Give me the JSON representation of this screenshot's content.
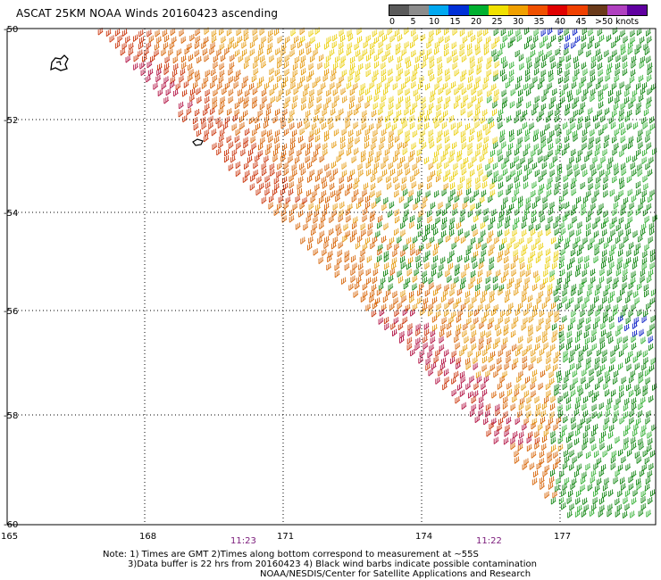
{
  "title": "ASCAT 25KM NOAA Winds 20160423 ascending",
  "legend": {
    "labels": [
      "0",
      "5",
      "10",
      "15",
      "20",
      "25",
      "30",
      "35",
      "40",
      "45",
      ">50 knots"
    ],
    "colors": [
      "#5a5a5a",
      "#8c8c8c",
      "#00a8f0",
      "#0030d8",
      "#00b030",
      "#f0e000",
      "#f0a000",
      "#f05000",
      "#e00000",
      "#f04000",
      "#6a3a1a",
      "#b040c0",
      "#6000a0"
    ]
  },
  "latitudes": [
    "-50",
    "-52",
    "-54",
    "-56",
    "-58",
    "-60"
  ],
  "longitudes": [
    "165",
    "168",
    "171",
    "174",
    "177"
  ],
  "times": [
    "11:23",
    "11:22"
  ],
  "notes": {
    "line1": "Note: 1) Times are GMT 2)Times along bottom correspond to measurement at ~55S",
    "line2": "3)Data buffer is 22 hrs from 20160423 4) Black wind barbs indicate possible contamination",
    "line3": "NOAA/NESDIS/Center for Satellite Applications and Research"
  },
  "wind_colors": {
    "green": "#1a8a1a",
    "light_green": "#3cb43c",
    "yellow": "#ecd21c",
    "orange": "#e6a01e",
    "dark_orange": "#d86a10",
    "red_orange": "#cc3c14",
    "crimson": "#b41848",
    "blue": "#1428c8"
  }
}
